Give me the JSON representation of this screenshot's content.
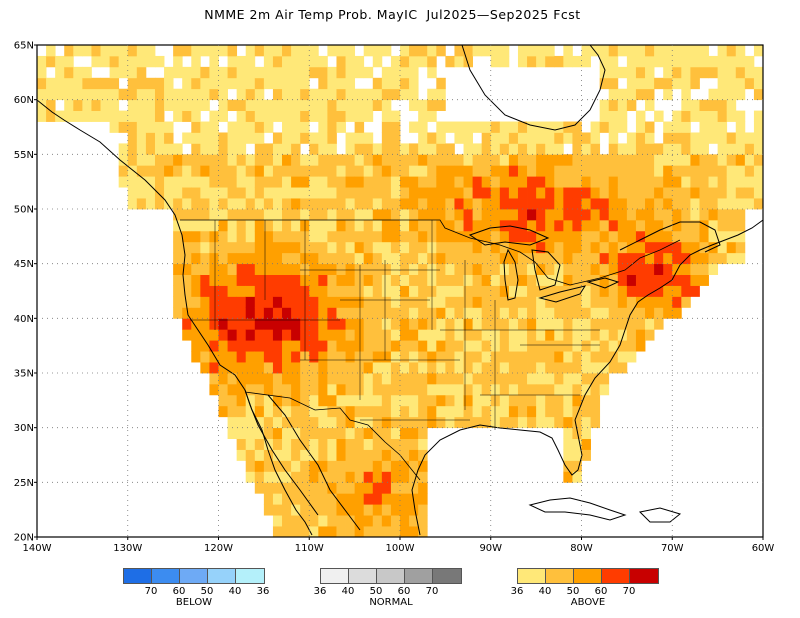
{
  "title": "NMME 2m Air Temp Prob. MayIC  Jul2025—Sep2025 Fcst",
  "map": {
    "lat_labels": [
      "65N",
      "60N",
      "55N",
      "50N",
      "45N",
      "40N",
      "35N",
      "30N",
      "25N",
      "20N"
    ],
    "lon_labels": [
      "140W",
      "130W",
      "120W",
      "110W",
      "100W",
      "90W",
      "80W",
      "70W",
      "60W"
    ],
    "extent": {
      "lon_min": -140,
      "lon_max": -60,
      "lat_min": 20,
      "lat_max": 65
    },
    "grid": "dotted"
  },
  "legend": {
    "below": {
      "name": "BELOW",
      "colors": [
        "#1e6ee6",
        "#3c8cf0",
        "#6eaaf5",
        "#96d2fa",
        "#b4f0fa"
      ],
      "ticks": [
        "70",
        "60",
        "50",
        "40",
        "36"
      ]
    },
    "normal": {
      "name": "NORMAL",
      "colors": [
        "#f0f0f0",
        "#dcdcdc",
        "#c8c8c8",
        "#a0a0a0",
        "#787878"
      ],
      "ticks": [
        "36",
        "40",
        "50",
        "60",
        "70"
      ]
    },
    "above": {
      "name": "ABOVE",
      "colors": [
        "#ffe878",
        "#ffc03c",
        "#ffa000",
        "#ff3c00",
        "#c80000"
      ],
      "ticks": [
        "36",
        "40",
        "50",
        "60",
        "70"
      ]
    }
  }
}
